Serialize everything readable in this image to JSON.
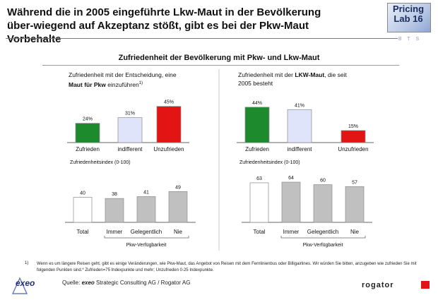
{
  "header": {
    "title": "Während die in 2005 eingeführte Lkw-Maut in der Bevölkerung über-wiegend auf Akzeptanz stößt, gibt es bei der Pkw-Maut Vorbehalte",
    "logo_line1": "Pricing",
    "logo_line2": "Lab 16",
    "bts_text": "B T S"
  },
  "subtitle": "Zufriedenheit der Bevölkerung mit Pkw- und Lkw-Maut",
  "panel_left": {
    "desc_line1": "Zufriedenheit mit der Entscheidung, eine",
    "desc_line2_bold": "Maut für Pkw",
    "desc_line2_rest": " einzuführen",
    "desc_sup": "1)"
  },
  "panel_right": {
    "desc_line1_pre": "Zufriedenheit mit der ",
    "desc_line1_bold": "LKW-Maut",
    "desc_line1_rest": ", die seit",
    "desc_line2": "2005 besteht"
  },
  "index_label": "Zufriedenheitsindex  (0-100)",
  "axis_group_label": "Pkw-Verfügbarkeit",
  "chart_data": [
    {
      "type": "bar",
      "title": "Zufriedenheit mit der Entscheidung, eine Maut für Pkw einzuführen",
      "categories": [
        "Zufrieden",
        "indifferent",
        "Unzufrieden"
      ],
      "values": [
        24,
        31,
        45
      ],
      "labels": [
        "24%",
        "31%",
        "45%"
      ],
      "colors": [
        "#1e8a2e",
        "#dfe4fa",
        "#e21414"
      ]
    },
    {
      "type": "bar",
      "title": "Zufriedenheit mit der LKW-Maut, die seit 2005 besteht",
      "categories": [
        "Zufrieden",
        "indifferent",
        "Unzufrieden"
      ],
      "values": [
        44,
        41,
        15
      ],
      "labels": [
        "44%",
        "41%",
        "15%"
      ],
      "colors": [
        "#1e8a2e",
        "#dfe4fa",
        "#e21414"
      ]
    },
    {
      "type": "bar",
      "title": "Zufriedenheitsindex  (0-100)",
      "xlabel": "Pkw-Verfügbarkeit",
      "categories": [
        "Total",
        "Immer",
        "Gelegentlich",
        "Nie"
      ],
      "values": [
        40,
        38,
        41,
        49
      ],
      "labels": [
        "40",
        "38",
        "41",
        "49"
      ],
      "colors": [
        "#ffffff",
        "#c0c0c0",
        "#c0c0c0",
        "#c0c0c0"
      ]
    },
    {
      "type": "bar",
      "title": "Zufriedenheitsindex  (0-100)",
      "xlabel": "Pkw-Verfügbarkeit",
      "categories": [
        "Total",
        "Immer",
        "Gelegentlich",
        "Nie"
      ],
      "values": [
        63,
        64,
        60,
        57
      ],
      "labels": [
        "63",
        "64",
        "60",
        "57"
      ],
      "colors": [
        "#ffffff",
        "#c0c0c0",
        "#c0c0c0",
        "#c0c0c0"
      ]
    }
  ],
  "footnote_number": "1)",
  "footnote": "Wenn es um längere Reisen geht, gibt es einige Veränderungen, wie Pkw-Maut, das Angebot von Reisen mit dem Fernlinienbus oder Billigairlines. Wir würden Sie bitten, anzugeben wie zufrieden Sie mit folgenden Punkten sind.* Zufrieden=75 Indexpunkte und mehr; Unzufrieden 0-25 Indexpunkte.",
  "source_prefix": "Quelle: ",
  "source_bold": "exeo",
  "source_rest": " Strategic Consulting AG / Rogator AG",
  "logos": {
    "exeo": "exeo",
    "rogator": "rogator"
  }
}
